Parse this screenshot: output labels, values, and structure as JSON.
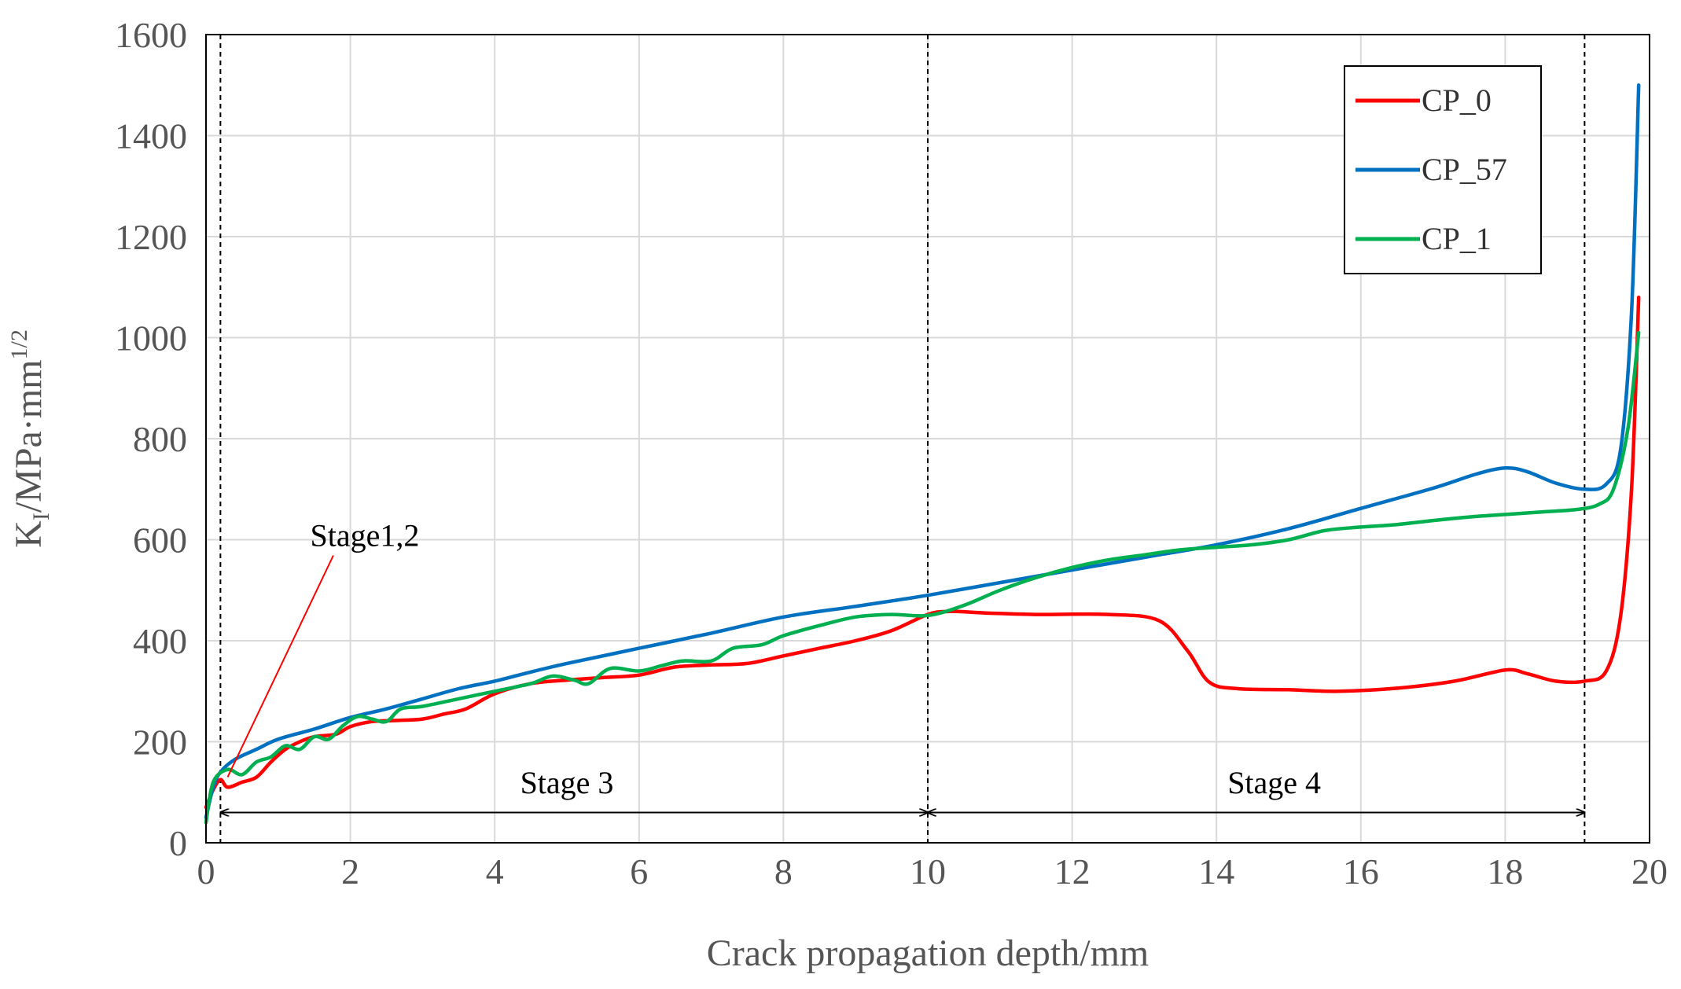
{
  "chart_data": {
    "type": "line",
    "title": "",
    "xlabel": "Crack propagation depth/mm",
    "ylabel": {
      "main": "K",
      "sub": "I",
      "unit": "/MPa·mm",
      "sup": "1/2"
    },
    "xlim": [
      0,
      20
    ],
    "ylim": [
      0,
      1600
    ],
    "xticks": [
      0,
      2,
      4,
      6,
      8,
      10,
      12,
      14,
      16,
      18,
      20
    ],
    "yticks": [
      0,
      200,
      400,
      600,
      800,
      1000,
      1200,
      1400,
      1600
    ],
    "grid": true,
    "legend_position": "top-right",
    "colors": {
      "CP_0": "#ff0000",
      "CP_57": "#0070c0",
      "CP_1": "#00b050"
    },
    "series": [
      {
        "name": "CP_0",
        "color": "#ff0000",
        "points": [
          [
            0,
            70
          ],
          [
            0.1,
            105
          ],
          [
            0.2,
            125
          ],
          [
            0.3,
            110
          ],
          [
            0.5,
            120
          ],
          [
            0.7,
            130
          ],
          [
            0.9,
            160
          ],
          [
            1.1,
            185
          ],
          [
            1.3,
            200
          ],
          [
            1.5,
            210
          ],
          [
            1.8,
            215
          ],
          [
            2.0,
            230
          ],
          [
            2.3,
            240
          ],
          [
            2.6,
            242
          ],
          [
            3.0,
            245
          ],
          [
            3.3,
            255
          ],
          [
            3.6,
            265
          ],
          [
            4.0,
            295
          ],
          [
            4.5,
            315
          ],
          [
            5.0,
            322
          ],
          [
            5.5,
            327
          ],
          [
            6.0,
            332
          ],
          [
            6.5,
            348
          ],
          [
            7.0,
            352
          ],
          [
            7.5,
            355
          ],
          [
            8.0,
            370
          ],
          [
            8.5,
            385
          ],
          [
            9.0,
            400
          ],
          [
            9.5,
            420
          ],
          [
            10.0,
            452
          ],
          [
            10.3,
            458
          ],
          [
            10.8,
            455
          ],
          [
            11.5,
            452
          ],
          [
            12.5,
            452
          ],
          [
            13.2,
            440
          ],
          [
            13.6,
            380
          ],
          [
            13.9,
            318
          ],
          [
            14.3,
            305
          ],
          [
            15.0,
            303
          ],
          [
            15.7,
            300
          ],
          [
            16.5,
            306
          ],
          [
            17.3,
            320
          ],
          [
            18.0,
            342
          ],
          [
            18.3,
            335
          ],
          [
            18.7,
            320
          ],
          [
            19.1,
            320
          ],
          [
            19.4,
            340
          ],
          [
            19.6,
            450
          ],
          [
            19.75,
            700
          ],
          [
            19.85,
            1080
          ]
        ]
      },
      {
        "name": "CP_57",
        "color": "#0070c0",
        "points": [
          [
            0,
            50
          ],
          [
            0.1,
            110
          ],
          [
            0.2,
            140
          ],
          [
            0.4,
            165
          ],
          [
            0.7,
            185
          ],
          [
            1.0,
            205
          ],
          [
            1.5,
            225
          ],
          [
            2.0,
            248
          ],
          [
            2.5,
            265
          ],
          [
            3.0,
            285
          ],
          [
            3.5,
            305
          ],
          [
            4.0,
            320
          ],
          [
            4.5,
            338
          ],
          [
            5.0,
            355
          ],
          [
            6.0,
            385
          ],
          [
            7.0,
            415
          ],
          [
            8.0,
            447
          ],
          [
            9.0,
            468
          ],
          [
            10.0,
            490
          ],
          [
            11.0,
            515
          ],
          [
            12.0,
            540
          ],
          [
            13.0,
            565
          ],
          [
            14.0,
            590
          ],
          [
            15.0,
            622
          ],
          [
            16.0,
            662
          ],
          [
            17.0,
            702
          ],
          [
            17.6,
            730
          ],
          [
            18.0,
            742
          ],
          [
            18.3,
            735
          ],
          [
            18.7,
            712
          ],
          [
            19.1,
            700
          ],
          [
            19.4,
            710
          ],
          [
            19.6,
            780
          ],
          [
            19.75,
            1050
          ],
          [
            19.85,
            1500
          ]
        ]
      },
      {
        "name": "CP_1",
        "color": "#00b050",
        "points": [
          [
            0,
            40
          ],
          [
            0.1,
            120
          ],
          [
            0.3,
            145
          ],
          [
            0.5,
            135
          ],
          [
            0.7,
            160
          ],
          [
            0.9,
            170
          ],
          [
            1.1,
            192
          ],
          [
            1.3,
            185
          ],
          [
            1.5,
            210
          ],
          [
            1.7,
            205
          ],
          [
            1.9,
            232
          ],
          [
            2.1,
            250
          ],
          [
            2.3,
            245
          ],
          [
            2.5,
            240
          ],
          [
            2.7,
            265
          ],
          [
            3.0,
            270
          ],
          [
            3.5,
            285
          ],
          [
            4.0,
            300
          ],
          [
            4.5,
            315
          ],
          [
            4.8,
            330
          ],
          [
            5.1,
            322
          ],
          [
            5.3,
            315
          ],
          [
            5.6,
            345
          ],
          [
            6.0,
            340
          ],
          [
            6.3,
            350
          ],
          [
            6.6,
            360
          ],
          [
            7.0,
            360
          ],
          [
            7.3,
            385
          ],
          [
            7.7,
            392
          ],
          [
            8.0,
            410
          ],
          [
            8.5,
            430
          ],
          [
            9.0,
            447
          ],
          [
            9.5,
            452
          ],
          [
            10.0,
            450
          ],
          [
            10.5,
            470
          ],
          [
            11.0,
            500
          ],
          [
            11.5,
            525
          ],
          [
            12.0,
            545
          ],
          [
            12.5,
            560
          ],
          [
            13.0,
            570
          ],
          [
            13.5,
            580
          ],
          [
            14.0,
            585
          ],
          [
            14.5,
            590
          ],
          [
            15.0,
            600
          ],
          [
            15.5,
            618
          ],
          [
            16.0,
            625
          ],
          [
            16.5,
            630
          ],
          [
            17.0,
            638
          ],
          [
            17.5,
            645
          ],
          [
            18.0,
            650
          ],
          [
            18.5,
            655
          ],
          [
            19.0,
            660
          ],
          [
            19.3,
            670
          ],
          [
            19.5,
            700
          ],
          [
            19.7,
            820
          ],
          [
            19.85,
            1010
          ]
        ]
      }
    ],
    "vlines": [
      0.2,
      10.0,
      19.1
    ],
    "annotations": [
      {
        "text": "Stage1,2",
        "x": 2.2,
        "y": 600,
        "arrow_to": [
          0.3,
          130
        ]
      },
      {
        "text": "Stage 3",
        "x": 5.0,
        "y": 120,
        "range": [
          0.2,
          10.0
        ],
        "arrow_y": 60
      },
      {
        "text": "Stage 4",
        "x": 14.8,
        "y": 120,
        "range": [
          10.0,
          19.1
        ],
        "arrow_y": 60
      }
    ]
  }
}
